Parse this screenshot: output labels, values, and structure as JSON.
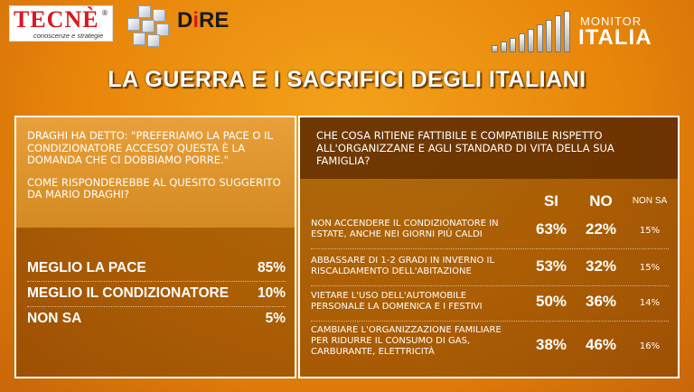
{
  "brand": {
    "tecne_name": "TECNÈ",
    "tecne_reg": "®",
    "tecne_tagline": "conoscenze e strategie",
    "dire_name_pre": "D",
    "dire_name_i": "i",
    "dire_name_post": "RE",
    "monitor_line1": "MONITOR",
    "monitor_line2": "ITALIA"
  },
  "title": "LA GUERRA E I SACRIFICI DEGLI ITALIANI",
  "colors": {
    "background": "#e8860a",
    "panel_border": "#ffffff",
    "tecne_red": "#d71920"
  },
  "chart_data": [
    {
      "type": "table",
      "question": [
        "DRAGHI HA DETTO: \"PREFERIAMO LA PACE O IL CONDIZIONATORE ACCESO? QUESTA È LA DOMANDA CHE CI DOBBIAMO PORRE.\"",
        "COME RISPONDEREBBE AL QUESITO SUGGERITO DA MARIO DRAGHI?"
      ],
      "categories": [
        "MEGLIO LA PACE",
        "MEGLIO IL CONDIZIONATORE",
        "NON SA"
      ],
      "values": [
        85,
        10,
        5
      ],
      "labels": [
        "85%",
        "10%",
        "5%"
      ]
    },
    {
      "type": "table",
      "question": "CHE COSA RITIENE FATTIBILE E COMPATIBILE RISPETTO ALL'ORGANIZZANE E AGLI STANDARD DI VITA DELLA SUA FAMIGLIA?",
      "columns": [
        "SI",
        "NO",
        "NON SA"
      ],
      "rows": [
        {
          "label": "NON ACCENDERE IL CONDIZIONATORE IN ESTATE, ANCHE NEI GIORNI PIÙ CALDI",
          "si": "63%",
          "no": "22%",
          "ns": "15%"
        },
        {
          "label": "ABBASSARE DI 1-2 GRADI IN INVERNO IL RISCALDAMENTO DELL'ABITAZIONE",
          "si": "53%",
          "no": "32%",
          "ns": "15%"
        },
        {
          "label": "VIETARE L'USO DELL'AUTOMOBILE PERSONALE LA DOMENICA E I FESTIVI",
          "si": "50%",
          "no": "36%",
          "ns": "14%"
        },
        {
          "label": "CAMBIARE L'ORGANIZZAZIONE FAMILIARE PER RIDURRE IL CONSUMO DI GAS, CARBURANTE, ELETTRICITÀ",
          "si": "38%",
          "no": "46%",
          "ns": "16%"
        }
      ]
    }
  ]
}
